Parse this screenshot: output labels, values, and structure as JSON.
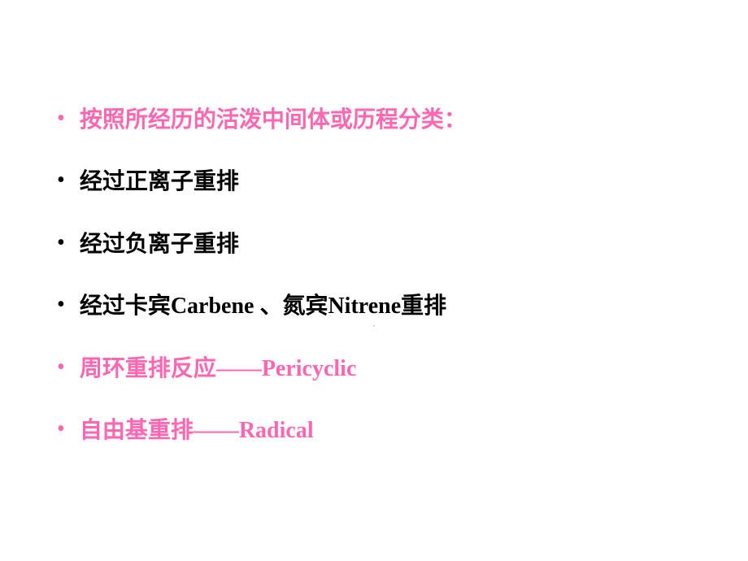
{
  "slide": {
    "items": [
      {
        "text": "按照所经历的活泼中间体或历程分类：",
        "color": "pink"
      },
      {
        "text": "经过正离子重排",
        "color": "black"
      },
      {
        "text": "经过负离子重排",
        "color": "black"
      },
      {
        "text": "经过卡宾Carbene 、氮宾Nitrene重排",
        "color": "black"
      },
      {
        "text": "周环重排反应——Pericyclic",
        "color": "pink"
      },
      {
        "text": "自由基重排——Radical",
        "color": "pink"
      }
    ],
    "bullet_char": "•",
    "colors": {
      "pink": "#ff66b2",
      "black": "#000000",
      "background": "#ffffff",
      "indicator": "#bbbbbb"
    },
    "page_indicator": "·"
  }
}
